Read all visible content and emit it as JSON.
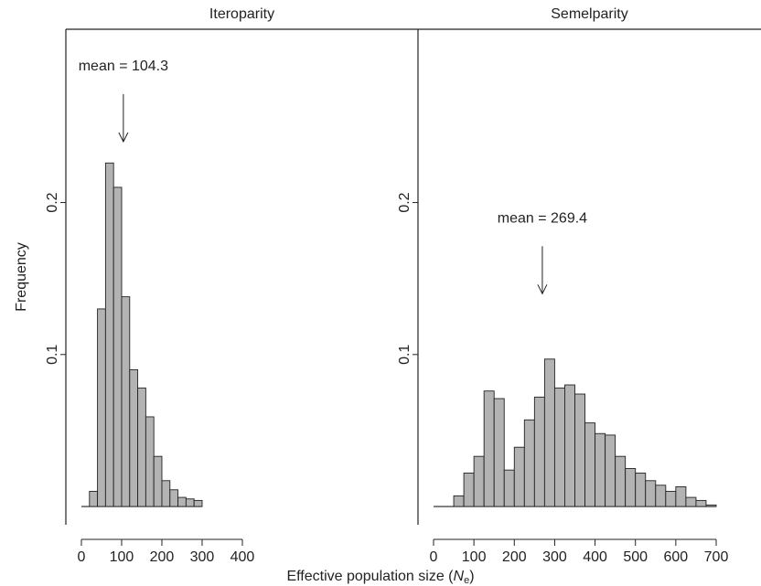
{
  "chart_data": [
    {
      "type": "histogram",
      "title": "Iteroparity",
      "ylabel": "Frequency",
      "xlabel": [
        "Effective population size (",
        "N",
        "e",
        ")"
      ],
      "bins": [
        0,
        20,
        40,
        60,
        80,
        100,
        120,
        140,
        160,
        180,
        200,
        220,
        240,
        260,
        280,
        300
      ],
      "counts": [
        0,
        0.01,
        0.13,
        0.226,
        0.21,
        0.138,
        0.09,
        0.078,
        0.059,
        0.033,
        0.017,
        0.011,
        0.006,
        0.005,
        0.004
      ],
      "color": "#b3b3b3",
      "xlim": [
        -38.6,
        836.4
      ],
      "xticks": [
        0,
        100,
        200,
        300,
        400
      ],
      "ylim": [
        -0.012,
        0.314
      ],
      "yticks": [
        0.1,
        0.2
      ],
      "annotations": [
        {
          "text": "mean = 104.3",
          "x": 104.3,
          "y": 0.24
        }
      ]
    },
    {
      "type": "histogram",
      "title": "Semelparity",
      "bins": [
        0,
        25,
        50,
        75,
        100,
        125,
        150,
        175,
        200,
        225,
        250,
        275,
        300,
        325,
        350,
        375,
        400,
        425,
        450,
        475,
        500,
        525,
        550,
        575,
        600,
        625,
        650,
        675,
        700
      ],
      "counts": [
        0,
        0,
        0.007,
        0.022,
        0.033,
        0.076,
        0.071,
        0.024,
        0.039,
        0.057,
        0.072,
        0.097,
        0.078,
        0.08,
        0.074,
        0.055,
        0.048,
        0.047,
        0.033,
        0.025,
        0.022,
        0.017,
        0.014,
        0.01,
        0.013,
        0.006,
        0.004,
        0.001
      ],
      "color": "#b3b3b3",
      "xlim": [
        -38.5,
        811
      ],
      "xticks": [
        0,
        100,
        200,
        300,
        400,
        500,
        600,
        700
      ],
      "ylim": [
        -0.012,
        0.314
      ],
      "yticks": [
        0.1,
        0.2
      ],
      "annotations": [
        {
          "text": "mean = 269.4",
          "x": 269.4,
          "y": 0.14
        }
      ]
    }
  ]
}
